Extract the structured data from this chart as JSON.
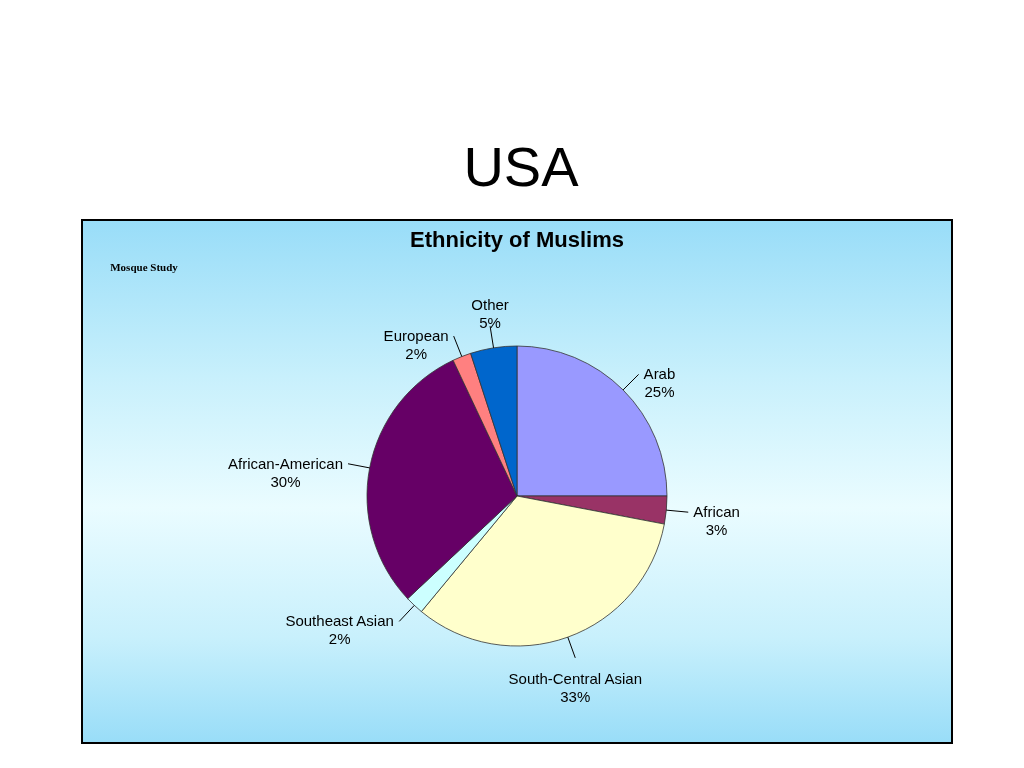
{
  "chart_data": {
    "type": "pie",
    "title": "USA",
    "subtitle": "Ethnicity of Muslims",
    "categories": [
      "Arab",
      "African",
      "South-Central Asian",
      "Southeast Asian",
      "African-American",
      "European",
      "Other"
    ],
    "values": [
      25,
      3,
      33,
      2,
      30,
      2,
      5
    ],
    "value_labels": [
      "25%",
      "3%",
      "33%",
      "2%",
      "30%",
      "2%",
      "5%"
    ],
    "colors": [
      "#9999ff",
      "#993366",
      "#ffffcc",
      "#ccffff",
      "#660066",
      "#ff8080",
      "#0066cc"
    ],
    "annotations": [
      "Mosque Study"
    ]
  }
}
